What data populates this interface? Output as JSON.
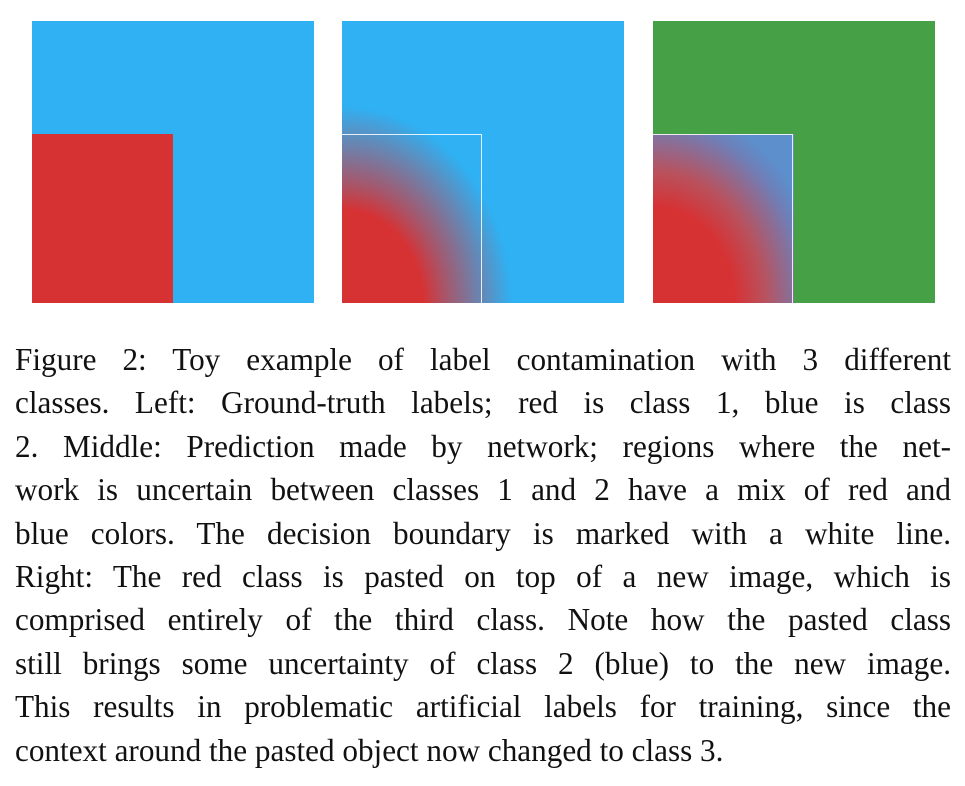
{
  "figure": {
    "panels": [
      {
        "name": "left",
        "description_colors": {
          "background": "#2fb1f3",
          "square": "#d63234"
        }
      },
      {
        "name": "middle",
        "description_colors": {
          "background": "#2fb1f3",
          "square": "#d63234",
          "boundary": "#ffffff"
        }
      },
      {
        "name": "right",
        "description_colors": {
          "background": "#45a046",
          "square": "#d63234",
          "boundary": "#ffffff"
        }
      }
    ],
    "caption_lines": [
      "Figure 2: Toy example of label contamination with 3 different",
      "classes. Left: Ground-truth labels; red is class 1, blue is class",
      "2. Middle: Prediction made by network; regions where the net-",
      "work is uncertain between classes 1 and 2 have a mix of red and",
      "blue colors. The decision boundary is marked with a white line.",
      "Right: The red class is pasted on top of a new image, which is",
      "comprised entirely of the third class. Note how the pasted class",
      "still brings some uncertainty of class 2 (blue) to the new image.",
      "This results in problematic artificial labels for training, since the",
      "context around the pasted object now changed to class 3."
    ]
  }
}
